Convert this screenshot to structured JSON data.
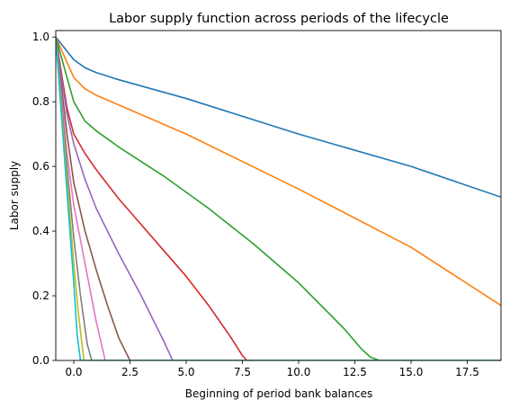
{
  "chart_data": {
    "type": "line",
    "title": "Labor supply function across periods of the lifecycle",
    "xlabel": "Beginning of period bank balances",
    "ylabel": "Labor supply",
    "xlim": [
      -0.8,
      19.0
    ],
    "ylim": [
      0.0,
      1.02
    ],
    "xticks": [
      0.0,
      2.5,
      5.0,
      7.5,
      10.0,
      12.5,
      15.0,
      17.5
    ],
    "xtick_labels": [
      "0.0",
      "2.5",
      "5.0",
      "7.5",
      "10.0",
      "12.5",
      "15.0",
      "17.5"
    ],
    "yticks": [
      0.0,
      0.2,
      0.4,
      0.6,
      0.8,
      1.0
    ],
    "ytick_labels": [
      "0.0",
      "0.2",
      "0.4",
      "0.6",
      "0.8",
      "1.0"
    ],
    "grid": false,
    "legend": "none",
    "series": [
      {
        "color": "#1f77b4",
        "x": [
          -0.8,
          0.0,
          0.5,
          1.0,
          2.0,
          5.0,
          10.0,
          15.0,
          19.0
        ],
        "y": [
          1.0,
          0.93,
          0.905,
          0.89,
          0.868,
          0.81,
          0.7,
          0.6,
          0.505
        ]
      },
      {
        "color": "#ff7f0e",
        "x": [
          -0.8,
          0.0,
          0.5,
          1.0,
          2.0,
          5.0,
          10.0,
          15.0,
          19.0
        ],
        "y": [
          1.0,
          0.875,
          0.84,
          0.82,
          0.79,
          0.7,
          0.53,
          0.35,
          0.17
        ]
      },
      {
        "color": "#2ca02c",
        "x": [
          -0.8,
          0.0,
          0.5,
          1.0,
          2.0,
          4.0,
          6.0,
          8.0,
          10.0,
          12.0,
          12.8,
          13.2,
          13.6,
          19.0
        ],
        "y": [
          1.0,
          0.8,
          0.74,
          0.71,
          0.66,
          0.57,
          0.47,
          0.36,
          0.24,
          0.1,
          0.035,
          0.01,
          0.0,
          0.0
        ]
      },
      {
        "color": "#d62728",
        "x": [
          -0.8,
          -0.3,
          0.0,
          0.5,
          1.0,
          2.0,
          3.0,
          4.0,
          5.0,
          6.0,
          7.0,
          7.5,
          7.7,
          19.0
        ],
        "y": [
          1.0,
          0.78,
          0.7,
          0.64,
          0.59,
          0.5,
          0.42,
          0.34,
          0.26,
          0.17,
          0.07,
          0.015,
          0.0,
          0.0
        ]
      },
      {
        "color": "#9467bd",
        "x": [
          -0.8,
          -0.3,
          0.0,
          0.5,
          1.0,
          2.0,
          3.0,
          4.0,
          4.4,
          19.0
        ],
        "y": [
          1.0,
          0.76,
          0.67,
          0.56,
          0.47,
          0.33,
          0.2,
          0.06,
          0.0,
          0.0
        ]
      },
      {
        "color": "#8c564b",
        "x": [
          -0.8,
          -0.3,
          0.0,
          0.5,
          1.0,
          1.5,
          2.0,
          2.5,
          19.0
        ],
        "y": [
          1.0,
          0.7,
          0.55,
          0.4,
          0.28,
          0.17,
          0.07,
          0.0,
          0.0
        ]
      },
      {
        "color": "#e377c2",
        "x": [
          -0.8,
          -0.3,
          0.0,
          0.5,
          1.0,
          1.4,
          19.0
        ],
        "y": [
          1.0,
          0.64,
          0.48,
          0.3,
          0.12,
          0.0,
          0.0
        ]
      },
      {
        "color": "#7f7f7f",
        "x": [
          -0.8,
          -0.3,
          0.0,
          0.3,
          0.6,
          0.8,
          19.0
        ],
        "y": [
          1.0,
          0.6,
          0.38,
          0.2,
          0.05,
          0.0,
          0.0
        ]
      },
      {
        "color": "#bcbd22",
        "x": [
          -0.8,
          -0.3,
          0.0,
          0.2,
          0.45,
          19.0
        ],
        "y": [
          1.0,
          0.56,
          0.3,
          0.15,
          0.0,
          0.0
        ]
      },
      {
        "color": "#17becf",
        "x": [
          -0.8,
          -0.3,
          0.0,
          0.15,
          0.3,
          19.0
        ],
        "y": [
          1.0,
          0.52,
          0.24,
          0.08,
          0.0,
          0.0
        ]
      }
    ]
  }
}
